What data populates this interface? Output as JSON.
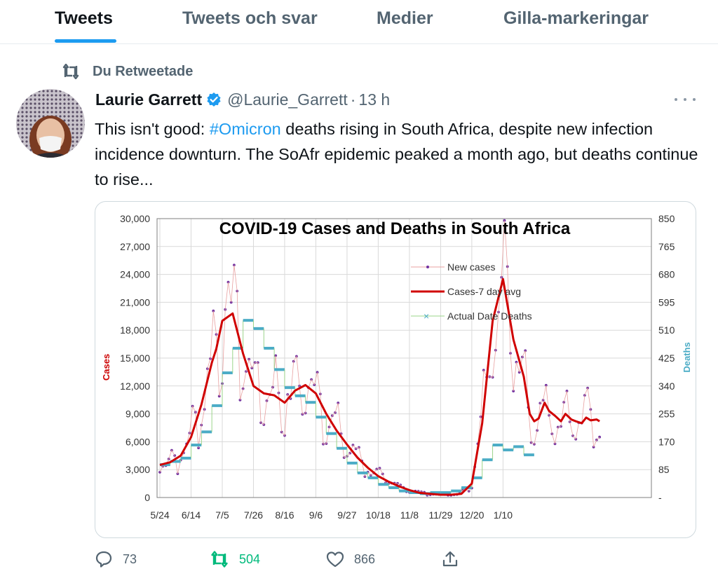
{
  "tabs": [
    {
      "label": "Tweets",
      "active": true
    },
    {
      "label": "Tweets och svar",
      "active": false
    },
    {
      "label": "Medier",
      "active": false
    },
    {
      "label": "Gilla-markeringar",
      "active": false
    }
  ],
  "retweet_notice": "Du Retweetade",
  "tweet": {
    "author_name": "Laurie Garrett",
    "handle": "@Laurie_Garrett",
    "separator": "·",
    "time": "13 h",
    "text_before": "This isn't good: ",
    "hashtag": "#Omicron",
    "text_after": " deaths rising in South Africa, despite new infection incidence downturn. The SoAfr epidemic peaked a month ago, but deaths continue to rise..."
  },
  "actions": {
    "replies": "73",
    "retweets": "504",
    "likes": "866"
  },
  "colors": {
    "accent": "#1d9bf0",
    "retweet_green": "#00ba7c",
    "cases_red": "#cc0000",
    "deaths_teal": "#4bacc6",
    "new_cases_purple": "#7030a0"
  },
  "chart_data": {
    "type": "line",
    "title": "COVID-19 Cases and Deaths in South Africa",
    "ylabel": "Cases",
    "y2label": "Deaths",
    "ylim": [
      0,
      30000
    ],
    "y2lim": [
      0,
      850
    ],
    "yticks": [
      "0",
      "3,000",
      "6,000",
      "9,000",
      "12,000",
      "15,000",
      "18,000",
      "21,000",
      "24,000",
      "27,000",
      "30,000"
    ],
    "y2ticks": [
      "-",
      "85",
      "170",
      "255",
      "340",
      "425",
      "510",
      "595",
      "680",
      "765",
      "850"
    ],
    "xticks": [
      "5/24",
      "6/14",
      "7/5",
      "7/26",
      "8/16",
      "9/6",
      "9/27",
      "10/18",
      "11/8",
      "11/29",
      "12/20",
      "1/10"
    ],
    "legend": [
      "New cases",
      "Cases-7 day avg",
      "Actual Date Deaths"
    ],
    "legend_position": "top-center",
    "grid": true,
    "series": [
      {
        "name": "Cases-7 day avg",
        "axis": "left",
        "x": [
          0,
          7,
          14,
          21,
          28,
          35,
          38,
          42,
          49,
          56,
          63,
          70,
          77,
          84,
          91,
          98,
          105,
          112,
          119,
          126,
          133,
          140,
          147,
          154,
          161,
          168,
          175,
          182,
          189,
          196,
          203,
          210,
          217,
          224,
          231,
          238,
          245,
          249,
          252,
          255,
          259,
          262,
          266,
          270,
          273,
          277,
          280,
          284,
          287,
          290,
          294,
          296
        ],
        "values": [
          3500,
          3800,
          4500,
          6500,
          10000,
          14500,
          16000,
          19000,
          19800,
          15500,
          12000,
          11200,
          11000,
          10200,
          11500,
          12100,
          11200,
          9000,
          7200,
          5700,
          4300,
          3200,
          2300,
          1700,
          1200,
          800,
          500,
          400,
          300,
          300,
          400,
          1500,
          8000,
          19000,
          23500,
          17000,
          13000,
          9000,
          8200,
          8500,
          10200,
          9300,
          8800,
          8200,
          9000,
          8400,
          8200,
          8000,
          8600,
          8300,
          8400,
          8200
        ]
      },
      {
        "name": "Actual Date Deaths",
        "axis": "right",
        "x": [
          0,
          7,
          14,
          21,
          28,
          35,
          42,
          49,
          56,
          63,
          70,
          77,
          84,
          91,
          98,
          105,
          112,
          119,
          126,
          133,
          140,
          147,
          154,
          161,
          168,
          175,
          182,
          189,
          196,
          203,
          210,
          217,
          224,
          231,
          238,
          245
        ],
        "values": [
          100,
          110,
          120,
          160,
          200,
          280,
          380,
          455,
          540,
          515,
          455,
          390,
          335,
          310,
          290,
          245,
          195,
          150,
          105,
          75,
          60,
          40,
          30,
          20,
          15,
          12,
          15,
          15,
          20,
          30,
          60,
          115,
          160,
          145,
          155,
          130
        ]
      }
    ]
  }
}
